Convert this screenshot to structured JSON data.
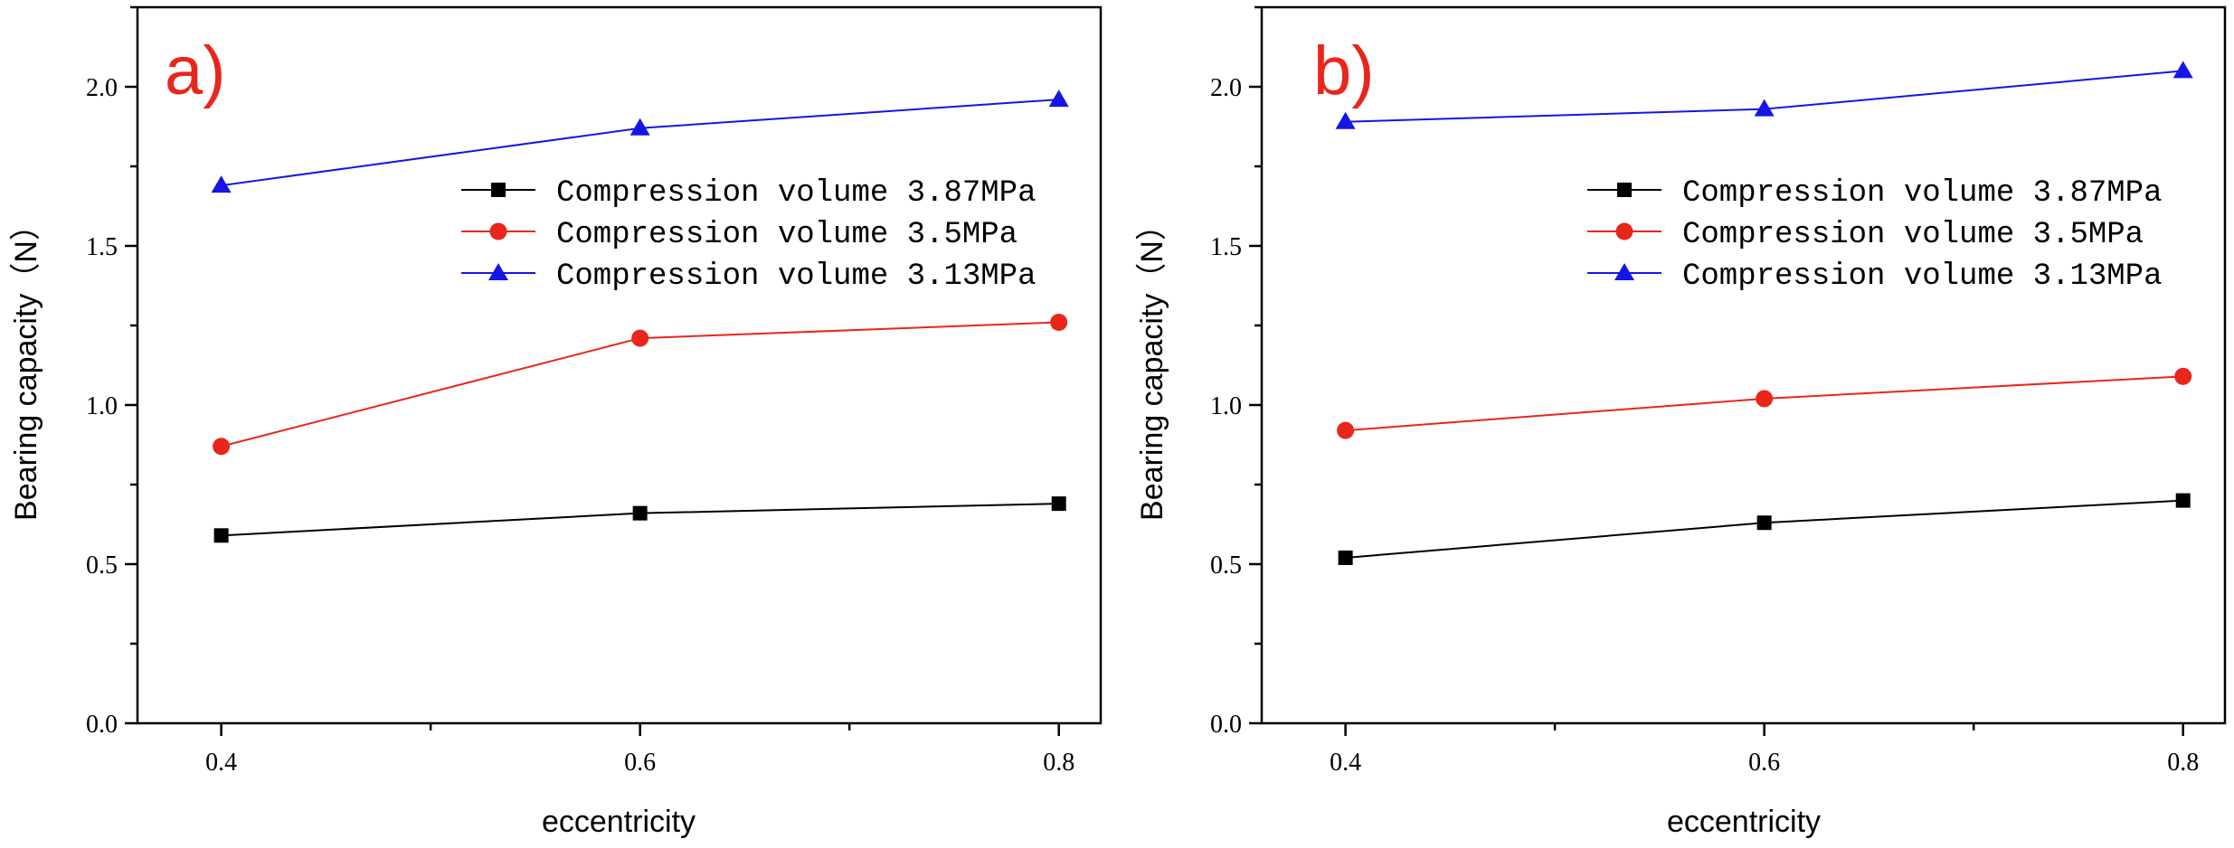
{
  "chart_data": [
    {
      "type": "line",
      "panel_label": "a)",
      "xlabel": "eccentricity",
      "ylabel": "Bearing capacity（N）",
      "xlim": [
        0.36,
        0.82
      ],
      "ylim": [
        0.0,
        2.25
      ],
      "xticks": [
        0.4,
        0.6,
        0.8
      ],
      "yticks": [
        0.0,
        0.5,
        1.0,
        1.5,
        2.0
      ],
      "x": [
        0.4,
        0.6,
        0.8
      ],
      "legend_position": "center-right",
      "series": [
        {
          "name": "Compression volume 3.87MPa",
          "color": "#000000",
          "marker": "square",
          "values": [
            0.59,
            0.66,
            0.69
          ]
        },
        {
          "name": "Compression volume 3.5MPa",
          "color": "#e8261c",
          "marker": "circle",
          "values": [
            0.87,
            1.21,
            1.26
          ]
        },
        {
          "name": "Compression volume 3.13MPa",
          "color": "#1515e6",
          "marker": "triangle",
          "values": [
            1.69,
            1.87,
            1.96
          ]
        }
      ]
    },
    {
      "type": "line",
      "panel_label": "b)",
      "xlabel": "eccentricity",
      "ylabel": "Bearing capacity（N）",
      "xlim": [
        0.36,
        0.82
      ],
      "ylim": [
        0.0,
        2.25
      ],
      "xticks": [
        0.4,
        0.6,
        0.8
      ],
      "yticks": [
        0.0,
        0.5,
        1.0,
        1.5,
        2.0
      ],
      "x": [
        0.4,
        0.6,
        0.8
      ],
      "legend_position": "center-right",
      "series": [
        {
          "name": "Compression volume 3.87MPa",
          "color": "#000000",
          "marker": "square",
          "values": [
            0.52,
            0.63,
            0.7
          ]
        },
        {
          "name": "Compression volume 3.5MPa",
          "color": "#e8261c",
          "marker": "circle",
          "values": [
            0.92,
            1.02,
            1.09
          ]
        },
        {
          "name": "Compression volume 3.13MPa",
          "color": "#1515e6",
          "marker": "triangle",
          "values": [
            1.89,
            1.93,
            2.05
          ]
        }
      ]
    }
  ]
}
